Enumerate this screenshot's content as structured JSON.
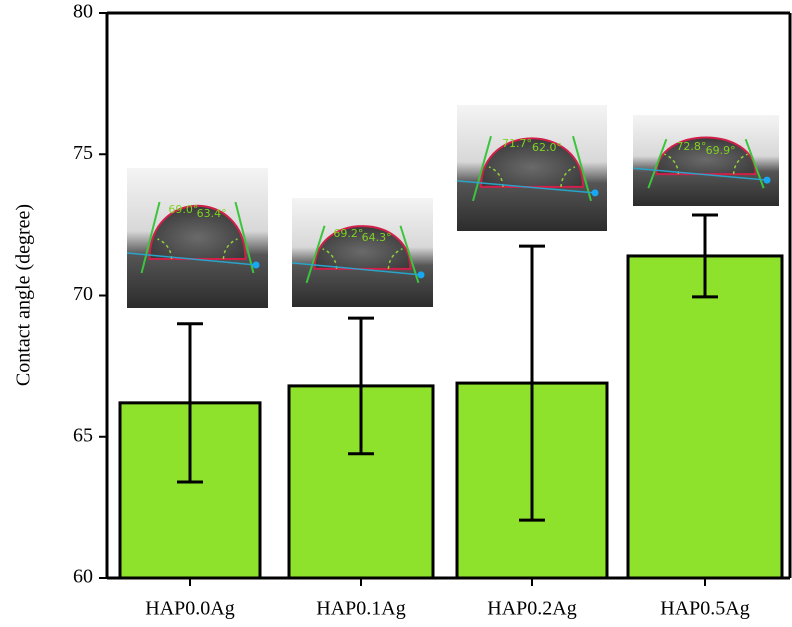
{
  "chart_data": {
    "type": "bar",
    "ylabel": "Contact angle (degree)",
    "categories": [
      "HAP0.0Ag",
      "HAP0.1Ag",
      "HAP0.2Ag",
      "HAP0.5Ag"
    ],
    "values": [
      66.2,
      66.8,
      66.9,
      71.4
    ],
    "errors": [
      2.8,
      2.4,
      4.85,
      1.45
    ],
    "color": "#8ee22b",
    "ylim": [
      60,
      80
    ],
    "yticks": [
      60,
      65,
      70,
      75,
      80
    ],
    "inset_labels": [
      [
        "69.0°",
        "63.4°"
      ],
      [
        "69.2°",
        "64.3°"
      ],
      [
        "71.7°",
        "62.0°"
      ],
      [
        "72.8°",
        "69.9°"
      ]
    ]
  }
}
